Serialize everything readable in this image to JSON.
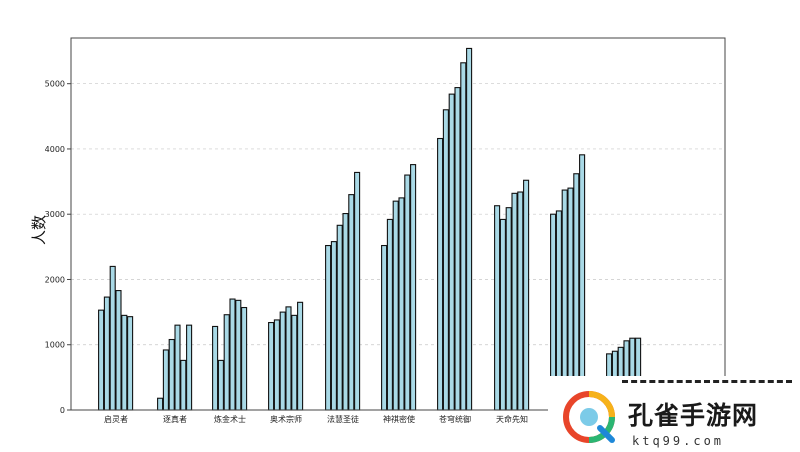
{
  "chart_data": {
    "type": "bar",
    "ylabel": "人数",
    "xlabel": "",
    "ylim": [
      0,
      5700
    ],
    "yticks": [
      0,
      1000,
      2000,
      3000,
      4000,
      5000
    ],
    "grid": true,
    "bar_color": "#a9d9e6",
    "categories": [
      "启灵者",
      "逐真者",
      "炼金术士",
      "奥术宗师",
      "法慧圣徒",
      "神祺密使",
      "苍穹统御",
      "天命先知",
      "",
      ""
    ],
    "values": [
      [
        1530,
        1730,
        2200,
        1830,
        1450,
        1430
      ],
      [
        180,
        920,
        1080,
        1300,
        760,
        1300
      ],
      [
        1280,
        760,
        1460,
        1700,
        1680,
        1570
      ],
      [
        1340,
        1380,
        1500,
        1580,
        1450,
        1650
      ],
      [
        2520,
        2580,
        2830,
        3010,
        3300,
        3640
      ],
      [
        2520,
        2920,
        3200,
        3250,
        3600,
        3760
      ],
      [
        4160,
        4600,
        4840,
        4940,
        5320,
        5540
      ],
      [
        3130,
        2920,
        3100,
        3320,
        3340,
        3520
      ],
      [
        3000,
        3050,
        3370,
        3400,
        3620,
        3910
      ],
      [
        860,
        900,
        960,
        1060,
        1100,
        1100
      ]
    ]
  },
  "watermark": {
    "name": "孔雀手游网",
    "url": "ktq99.com",
    "logo_icon": "peacock-q-logo-icon"
  }
}
